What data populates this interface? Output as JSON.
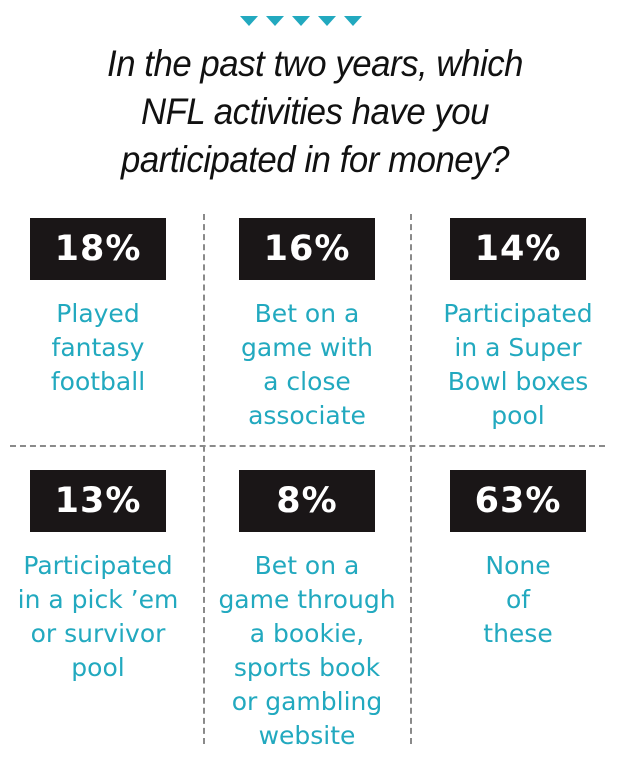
{
  "title_lines": [
    "In the past two years, which",
    "NFL activities have you",
    "participated in for money?"
  ],
  "accent_color": "#22a9bf",
  "badge_color": "#1a1617",
  "chart_data": {
    "type": "table",
    "title": "In the past two years, which NFL activities have you participated in for money?",
    "categories": [
      "Played fantasy football",
      "Bet on a game with a close associate",
      "Participated in a Super Bowl boxes pool",
      "Participated in a pick ’em or survivor pool",
      "Bet on a game through a bookie, sports book or gambling website",
      "None of these"
    ],
    "values": [
      18,
      16,
      14,
      13,
      8,
      63
    ],
    "unit": "%"
  },
  "cells": [
    {
      "value": "18%",
      "lines": [
        "Played",
        "fantasy",
        "football"
      ]
    },
    {
      "value": "16%",
      "lines": [
        "Bet on a",
        "game with",
        "a close",
        "associate"
      ]
    },
    {
      "value": "14%",
      "lines": [
        "Participated",
        "in a Super",
        "Bowl boxes",
        "pool"
      ]
    },
    {
      "value": "13%",
      "lines": [
        "Participated",
        "in a pick ’em",
        "or survivor",
        "pool"
      ]
    },
    {
      "value": "8%",
      "lines": [
        "Bet on a",
        "game through",
        "a bookie,",
        "sports book",
        "or gambling",
        "website"
      ]
    },
    {
      "value": "63%",
      "lines": [
        "None",
        "of",
        "these"
      ]
    }
  ]
}
